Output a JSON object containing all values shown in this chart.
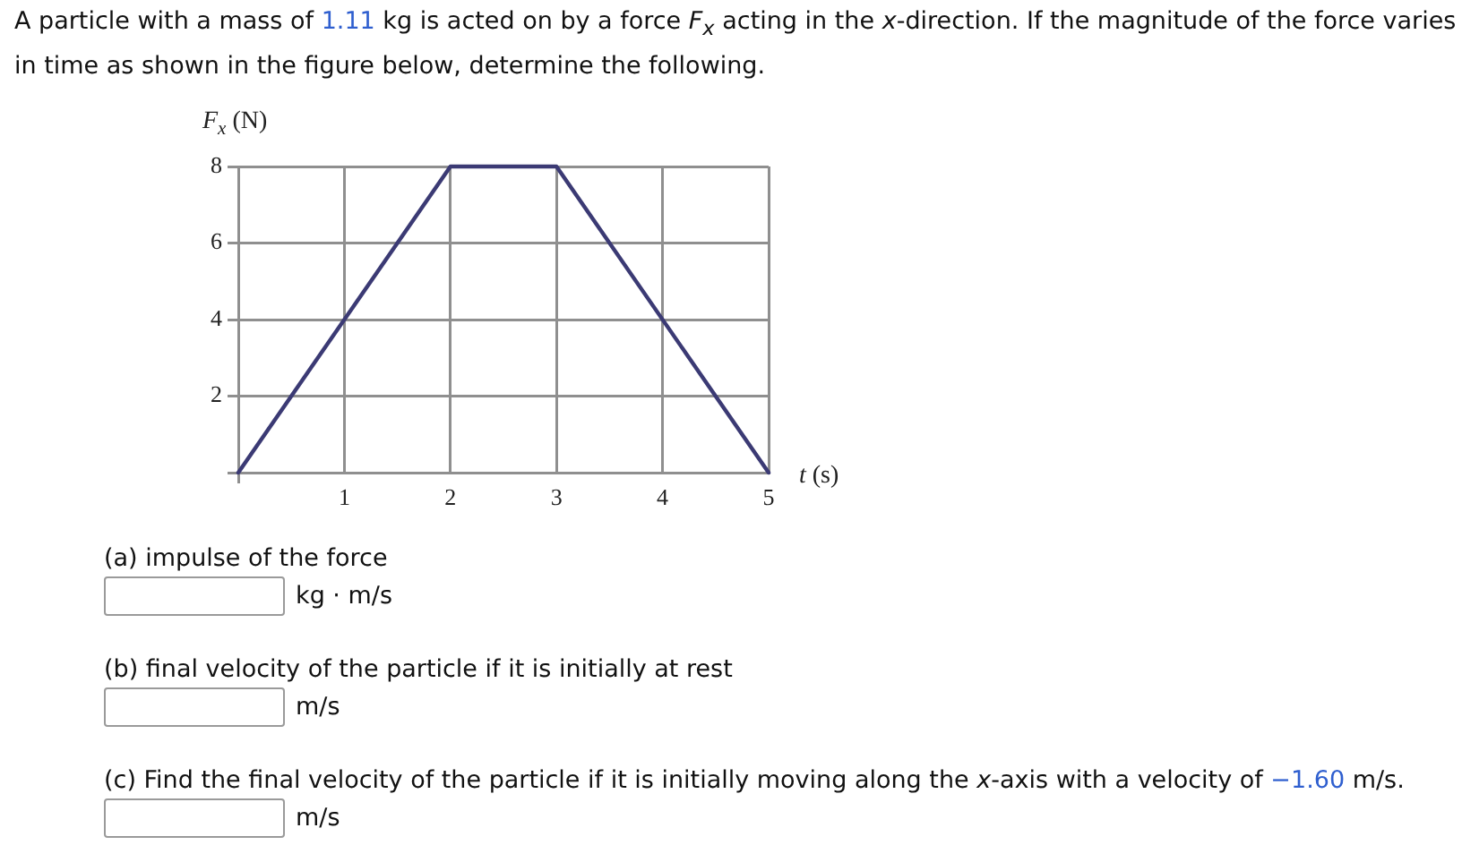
{
  "chart_data": {
    "type": "line",
    "title": "A particle with a mass of 1.11 kg is acted on by a force F$_{x}$ acting in the x-direction. If the magnitude of the force varies in time as shown in the figure below, determine the following.",
    "xlabel": "t (s)",
    "ylabel": "F$_{x}$ (N)",
    "x": [
      0,
      2,
      3,
      5
    ],
    "values": [
      0,
      8,
      8,
      0
    ],
    "color": "#3b3a74",
    "marker": "none",
    "line_style": "solid",
    "xlim": [
      0,
      5
    ],
    "ylim": [
      0,
      8
    ],
    "xticks": [
      {
        "value": 0,
        "label": null
      },
      1,
      2,
      3,
      4,
      5
    ],
    "yticks": [
      {
        "value": 0,
        "label": null
      },
      2,
      4,
      6,
      8
    ],
    "grid": true,
    "annotations": [
      "(a) impulse of the force",
      "kg · m/s",
      "(b) final velocity of the particle if it is initially at rest",
      "m/s",
      "(c) Find the final velocity of the particle if it is initially moving along the x-axis with a velocity of −1.60 m/s.",
      "m/s"
    ]
  }
}
